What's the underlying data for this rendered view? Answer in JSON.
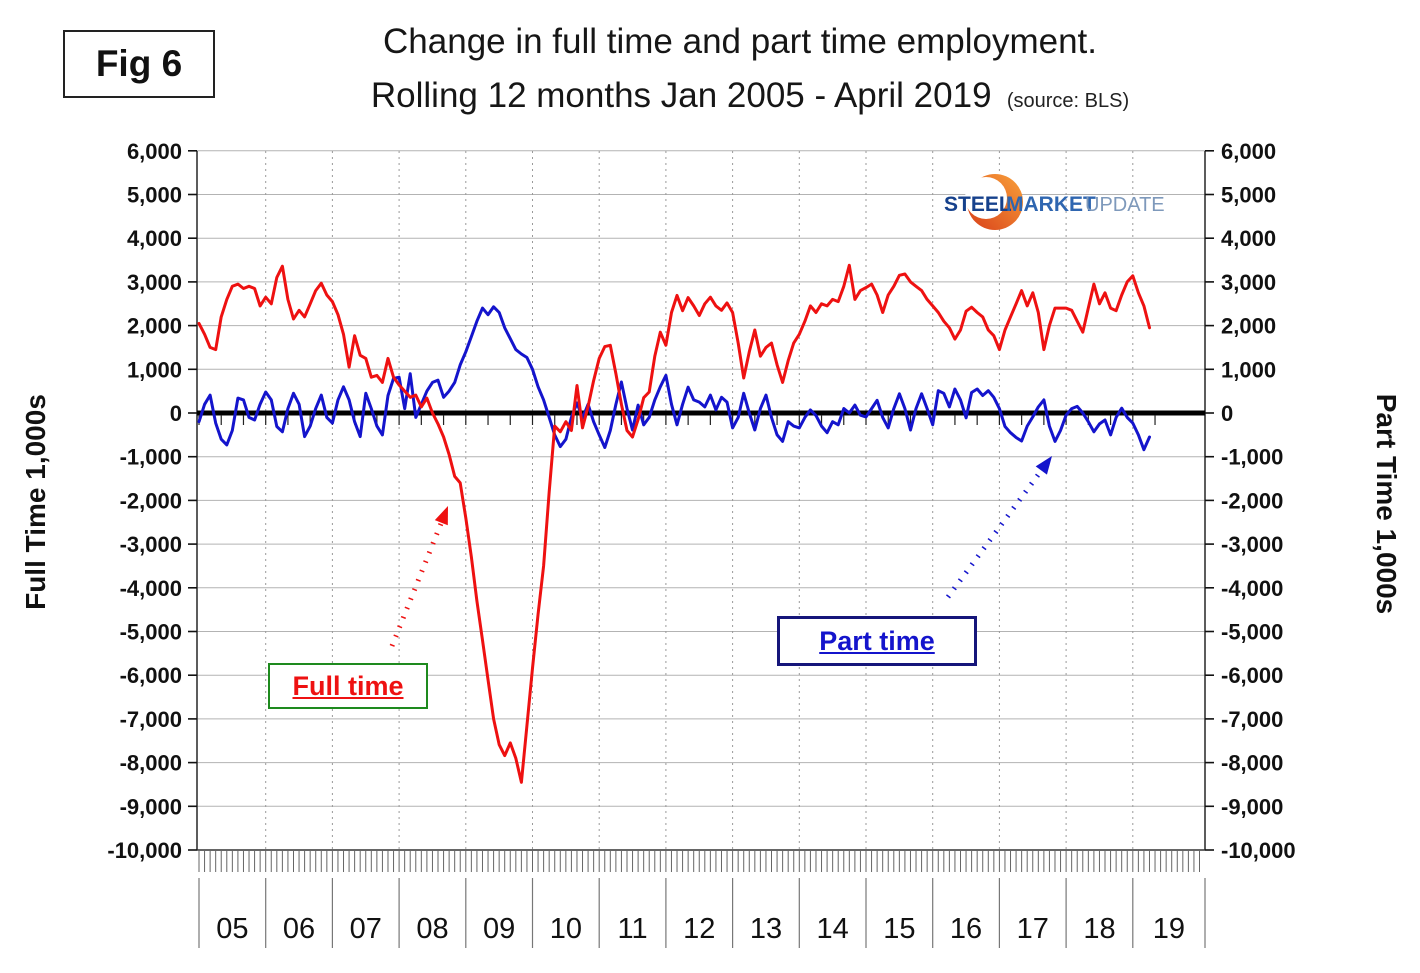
{
  "fig_label": "Fig 6",
  "title_line1": "Change in full time and part time employment.",
  "title_line2": "Rolling 12 months Jan 2005 - April 2019",
  "source_note": "(source: BLS)",
  "logo": {
    "word1": "STEEL",
    "word2": "MARKET",
    "word3": "UPDATE"
  },
  "left_axis_title": "Full Time 1,000s",
  "right_axis_title": "Part Time 1,000s",
  "annotations": {
    "full_time_label": "Full time",
    "part_time_label": "Part time"
  },
  "colors": {
    "full_time_line": "#EE1111",
    "part_time_line": "#1414CC",
    "zero_line": "#000000",
    "gridline": "#b3b3b3",
    "year_gridline": "#9a9a9a",
    "axis_frame": "#333333",
    "full_time_box_border": "#1E8A1E",
    "part_time_box_border": "#16167A",
    "logo_steel": "#16418C",
    "logo_market": "#2F66B0",
    "logo_update": "#7E99BB",
    "logo_swoosh_outer": "#E8531F",
    "logo_swoosh_inner": "#F9A13A"
  },
  "chart_data": {
    "type": "line",
    "title": "Change in full time and part time employment. Rolling 12 months Jan 2005 - April 2019",
    "x_unit": "month",
    "x_start": "2005-01",
    "x_end": "2019-04",
    "xlabel": "",
    "ylabel_left": "Full Time 1,000s",
    "ylabel_right": "Part Time 1,000s",
    "ylim": [
      -10000,
      6000
    ],
    "y_ticks": [
      6000,
      5000,
      4000,
      3000,
      2000,
      1000,
      0,
      -1000,
      -2000,
      -3000,
      -4000,
      -5000,
      -6000,
      -7000,
      -8000,
      -9000,
      -10000
    ],
    "x_tick_labels": [
      "05",
      "06",
      "07",
      "08",
      "09",
      "10",
      "11",
      "12",
      "13",
      "14",
      "15",
      "16",
      "17",
      "18",
      "19"
    ],
    "grid": true,
    "legend_position": "in-plot callout boxes",
    "series": [
      {
        "name": "Full time",
        "color": "#EE1111",
        "values": [
          2050,
          1800,
          1500,
          1450,
          2200,
          2600,
          2900,
          2950,
          2850,
          2900,
          2850,
          2450,
          2650,
          2500,
          3100,
          3360,
          2600,
          2150,
          2350,
          2200,
          2500,
          2800,
          2970,
          2700,
          2550,
          2250,
          1800,
          1050,
          1770,
          1320,
          1250,
          820,
          860,
          700,
          1250,
          820,
          640,
          500,
          360,
          410,
          140,
          340,
          0,
          -250,
          -550,
          -950,
          -1450,
          -1600,
          -2400,
          -3300,
          -4300,
          -5200,
          -6100,
          -7000,
          -7590,
          -7840,
          -7550,
          -7900,
          -8450,
          -7160,
          -5840,
          -4600,
          -3500,
          -1800,
          -300,
          -430,
          -200,
          -400,
          630,
          -340,
          150,
          740,
          1250,
          1520,
          1550,
          900,
          200,
          -400,
          -550,
          -150,
          350,
          480,
          1300,
          1850,
          1550,
          2300,
          2690,
          2340,
          2640,
          2450,
          2230,
          2500,
          2650,
          2450,
          2350,
          2520,
          2300,
          1600,
          800,
          1400,
          1900,
          1300,
          1500,
          1600,
          1100,
          700,
          1200,
          1600,
          1800,
          2100,
          2450,
          2300,
          2500,
          2450,
          2600,
          2550,
          2900,
          3380,
          2600,
          2800,
          2870,
          2950,
          2700,
          2300,
          2700,
          2900,
          3150,
          3180,
          3000,
          2900,
          2800,
          2600,
          2450,
          2300,
          2100,
          1950,
          1690,
          1900,
          2330,
          2420,
          2300,
          2200,
          1900,
          1770,
          1450,
          1900,
          2200,
          2500,
          2800,
          2450,
          2750,
          2300,
          1450,
          2000,
          2400,
          2400,
          2400,
          2350,
          2100,
          1850,
          2400,
          2950,
          2500,
          2750,
          2400,
          2340,
          2700,
          3000,
          3140,
          2750,
          2450,
          1950
        ]
      },
      {
        "name": "Part time",
        "color": "#1414CC",
        "values": [
          -200,
          200,
          410,
          -230,
          -600,
          -730,
          -400,
          340,
          300,
          -100,
          -160,
          200,
          480,
          300,
          -310,
          -430,
          100,
          450,
          200,
          -540,
          -300,
          100,
          410,
          -100,
          -230,
          300,
          600,
          300,
          -200,
          -540,
          450,
          100,
          -300,
          -500,
          400,
          790,
          820,
          100,
          900,
          -100,
          200,
          500,
          700,
          750,
          360,
          500,
          700,
          1100,
          1400,
          1750,
          2100,
          2400,
          2250,
          2430,
          2300,
          1950,
          1700,
          1450,
          1350,
          1270,
          1000,
          600,
          300,
          -100,
          -500,
          -770,
          -600,
          -100,
          230,
          -120,
          200,
          -200,
          -500,
          -790,
          -400,
          200,
          710,
          100,
          -390,
          180,
          -270,
          -100,
          300,
          600,
          860,
          200,
          -270,
          200,
          590,
          300,
          250,
          140,
          410,
          70,
          360,
          250,
          -340,
          -100,
          450,
          0,
          -390,
          100,
          410,
          -100,
          -500,
          -650,
          -200,
          -300,
          -340,
          -100,
          70,
          -60,
          -300,
          -450,
          -200,
          -270,
          100,
          0,
          180,
          -50,
          -90,
          100,
          290,
          -100,
          -340,
          100,
          440,
          100,
          -390,
          100,
          440,
          100,
          -270,
          510,
          450,
          140,
          550,
          300,
          -110,
          470,
          550,
          400,
          510,
          360,
          100,
          -310,
          -450,
          -560,
          -640,
          -300,
          -90,
          140,
          300,
          -300,
          -650,
          -400,
          -50,
          100,
          150,
          0,
          -200,
          -430,
          -250,
          -160,
          -500,
          -100,
          110,
          -100,
          -230,
          -500,
          -840,
          -550
        ]
      }
    ]
  }
}
